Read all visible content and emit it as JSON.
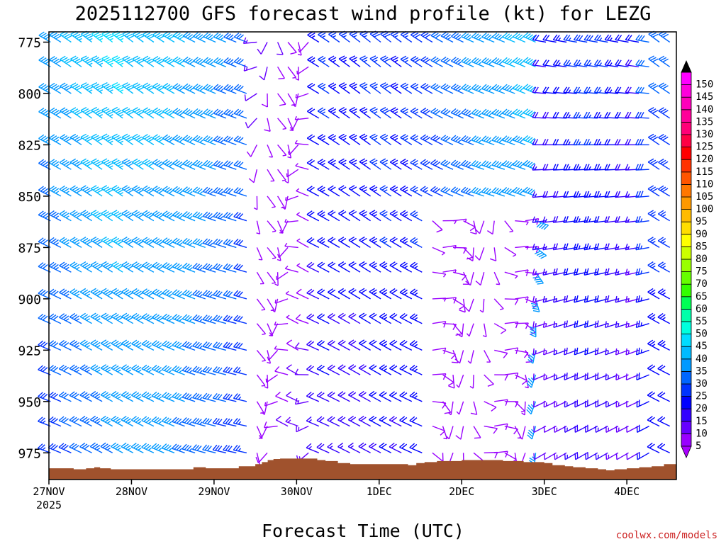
{
  "chart_data": {
    "type": "wind-barb-profile",
    "title": "2025112700 GFS forecast wind profile (kt) for LEZG",
    "xlabel": "Forecast Time (UTC)",
    "ylabel": "",
    "credit": "coolwx.com/models",
    "x_tick_labels": [
      "27NOV",
      "28NOV",
      "29NOV",
      "30NOV",
      "1DEC",
      "2DEC",
      "3DEC",
      "4DEC"
    ],
    "x_year_label": "2025",
    "x_range_days": [
      0,
      7.6
    ],
    "y_tick_labels": [
      "775",
      "800",
      "825",
      "850",
      "875",
      "900",
      "925",
      "950",
      "975"
    ],
    "y_range_hPa": [
      770,
      988
    ],
    "barb_levels_hPa": [
      775,
      787,
      800,
      812,
      825,
      837,
      850,
      862,
      875,
      887,
      900,
      912,
      925,
      937,
      950,
      962,
      975
    ],
    "colorbar": {
      "labels": [
        "5",
        "10",
        "15",
        "20",
        "25",
        "30",
        "35",
        "40",
        "45",
        "50",
        "55",
        "60",
        "65",
        "70",
        "75",
        "80",
        "85",
        "90",
        "95",
        "100",
        "105",
        "110",
        "115",
        "120",
        "125",
        "130",
        "135",
        "140",
        "145",
        "150"
      ],
      "colors": [
        "#9900ff",
        "#6600ff",
        "#3300ff",
        "#0000ff",
        "#0033ff",
        "#0066ff",
        "#0099ff",
        "#00bbff",
        "#00ddff",
        "#00ffdd",
        "#00ffaa",
        "#00ff55",
        "#33ff00",
        "#66ff00",
        "#99ff00",
        "#ccff00",
        "#ffff00",
        "#ffdd00",
        "#ffbb00",
        "#ff9900",
        "#ff7700",
        "#ff5500",
        "#ff3300",
        "#ff0000",
        "#ff0044",
        "#ff0077",
        "#ff0099",
        "#ff00bb",
        "#ff00dd",
        "#ff00ff"
      ]
    },
    "terrain": {
      "color": "#a0522d",
      "times_days": [
        0,
        0.3,
        0.45,
        0.55,
        0.62,
        0.75,
        0.9,
        1.6,
        1.75,
        1.9,
        2.1,
        2.3,
        2.45,
        2.5,
        2.58,
        2.65,
        2.72,
        2.8,
        3.0,
        3.25,
        3.35,
        3.5,
        3.65,
        3.75,
        4.25,
        4.35,
        4.45,
        4.55,
        4.7,
        4.8,
        5.0,
        5.15,
        5.45,
        5.5,
        5.75,
        6.0,
        6.1,
        6.25,
        6.35,
        6.5,
        6.65,
        6.75,
        6.85,
        7.0,
        7.15,
        7.3,
        7.45,
        7.6
      ],
      "surface_hPa": [
        982.5,
        983.0,
        982.5,
        982.0,
        982.5,
        983.0,
        983.0,
        983.0,
        982.0,
        982.5,
        982.5,
        981.5,
        981.5,
        980.5,
        979.5,
        978.5,
        978.0,
        977.8,
        977.8,
        978.5,
        979.0,
        980.0,
        980.5,
        980.5,
        980.5,
        981.0,
        980.0,
        979.5,
        979.0,
        979.0,
        978.5,
        978.5,
        978.5,
        979.0,
        979.5,
        980.0,
        981.0,
        981.5,
        982.0,
        982.5,
        983.0,
        983.5,
        983.0,
        982.5,
        982.0,
        981.5,
        980.5,
        980.0
      ]
    }
  }
}
